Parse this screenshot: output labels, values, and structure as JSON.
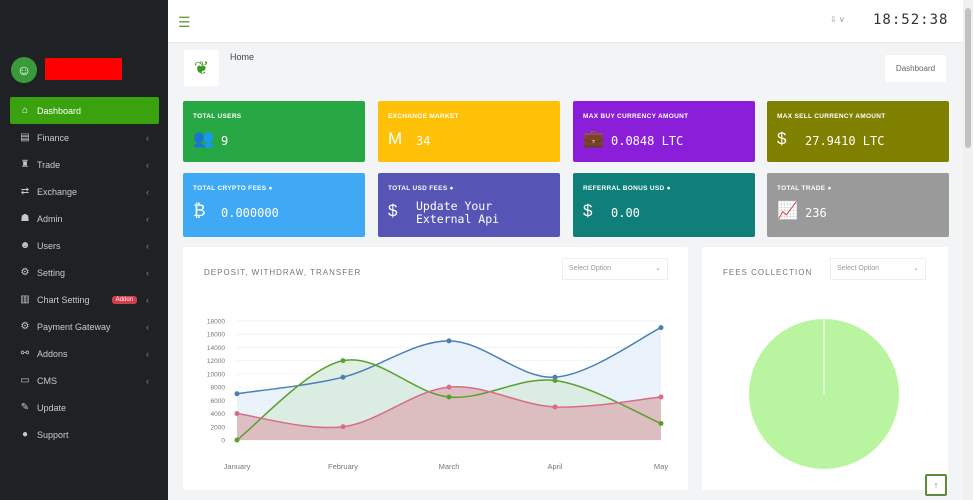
{
  "sidebar": {
    "items": [
      {
        "label": "Dashboard",
        "icon": "home-icon",
        "glyph": "⌂",
        "chev": false
      },
      {
        "label": "Finance",
        "icon": "finance-icon",
        "glyph": "▤",
        "chev": true
      },
      {
        "label": "Trade",
        "icon": "trade-icon",
        "glyph": "♜",
        "chev": true
      },
      {
        "label": "Exchange",
        "icon": "exchange-icon",
        "glyph": "⇄",
        "chev": true
      },
      {
        "label": "Admin",
        "icon": "admin-icon",
        "glyph": "☗",
        "chev": true
      },
      {
        "label": "Users",
        "icon": "users-icon",
        "glyph": "☻",
        "chev": true
      },
      {
        "label": "Setting",
        "icon": "gear-icon",
        "glyph": "⚙",
        "chev": true
      },
      {
        "label": "Chart Setting",
        "icon": "chart-icon",
        "glyph": "▥",
        "chev": true,
        "badge": "Addon"
      },
      {
        "label": "Payment Gateway",
        "icon": "cogs-icon",
        "glyph": "⚙",
        "chev": true
      },
      {
        "label": "Addons",
        "icon": "sitemap-icon",
        "glyph": "⚯",
        "chev": true
      },
      {
        "label": "CMS",
        "icon": "monitor-icon",
        "glyph": "▭",
        "chev": true
      },
      {
        "label": "Update",
        "icon": "tools-icon",
        "glyph": "✎",
        "chev": false
      },
      {
        "label": "Support",
        "icon": "support-icon",
        "glyph": "●",
        "chev": false
      }
    ]
  },
  "topbar": {
    "clock": "18:52:38",
    "lang": "⇩ ∨"
  },
  "breadcrumb": {
    "label": "Home",
    "button": "Dashboard"
  },
  "cards": [
    {
      "label": "Total Users",
      "value": "9",
      "color": "#28a745",
      "glyph": "👥",
      "icon": "users-icon"
    },
    {
      "label": "Exchange Market",
      "value": "34",
      "color": "#ffc107",
      "glyph": "M",
      "icon": "market-icon"
    },
    {
      "label": "Max Buy Currency Amount",
      "value": "0.0848 LTC",
      "color": "#8b1fd9",
      "glyph": "💼",
      "icon": "briefcase-icon"
    },
    {
      "label": "Max Sell Currency Amount",
      "value": "27.9410 LTC",
      "color": "#808000",
      "glyph": "$",
      "icon": "dollar-box-icon"
    },
    {
      "label": "Total Crypto Fees ●",
      "value": "0.000000",
      "color": "#3fa9f5",
      "glyph": "₿",
      "icon": "bitcoin-icon"
    },
    {
      "label": "Total USD Fees ●",
      "value": "Update Your External Api",
      "color": "#5654b4",
      "glyph": "$",
      "icon": "hand-dollar-icon"
    },
    {
      "label": "Referral Bonus USD ●",
      "value": "0.00",
      "color": "#0f7f7a",
      "glyph": "$",
      "icon": "dollar-icon"
    },
    {
      "label": "Total Trade ●",
      "value": "236",
      "color": "#9a9a9a",
      "glyph": "📈",
      "icon": "chart-growth-icon"
    }
  ],
  "chart_data": [
    {
      "type": "area",
      "title": "DEPOSIT, WITHDRAW, TRANSFER",
      "select": "Select Option",
      "categories": [
        "January",
        "February",
        "March",
        "April",
        "May"
      ],
      "ylim": [
        0,
        18000
      ],
      "yticks": [
        0,
        2000,
        4000,
        6000,
        8000,
        10000,
        12000,
        14000,
        16000,
        18000
      ],
      "series": [
        {
          "values": [
            7000,
            9500,
            15000,
            9500,
            17000
          ],
          "color": "#4a7fb5",
          "fill": "#e3eefa"
        },
        {
          "values": [
            0,
            12000,
            6500,
            9000,
            2500
          ],
          "color": "#5aa02c",
          "fill": "#d6e9da"
        },
        {
          "values": [
            4000,
            2000,
            8000,
            5000,
            6500
          ],
          "color": "#d96c8a",
          "fill": "#dcb9bd"
        }
      ]
    },
    {
      "type": "pie",
      "title": "FEES COLLECTION",
      "select": "Select Option",
      "values": [
        100
      ],
      "colors": [
        "#b9f5a0"
      ]
    }
  ]
}
